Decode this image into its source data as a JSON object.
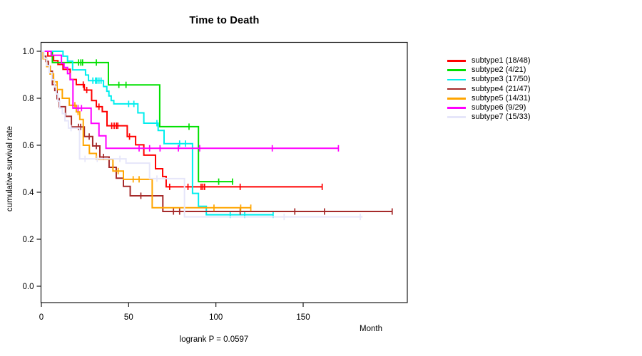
{
  "chart_data": {
    "type": "line",
    "subtype_kind": "kaplan-meier-survival-step-curves",
    "title": "Time to Death",
    "ylabel": "cumulative survival rate",
    "xlabel": "Month",
    "footnote": "logrank P = 0.0597",
    "xlim": [
      0,
      210
    ],
    "ylim": [
      0,
      1
    ],
    "grid": "off",
    "legend_position": "right-outside",
    "xticks": [
      0,
      50,
      100,
      150
    ],
    "xtick_labels": [
      "0",
      "50",
      "100",
      "150"
    ],
    "yticks": [
      0.0,
      0.2,
      0.4,
      0.6,
      0.8,
      1.0
    ],
    "ytick_labels": [
      "0.0",
      "0.2",
      "0.4",
      "0.6",
      "0.8",
      "1.0"
    ],
    "axis_color": "#1a1a1a",
    "text_color": "#000000",
    "background_color": "#ffffff",
    "series": [
      {
        "name": "subtype1",
        "legend_label": "subtype1 (18/48)",
        "color": "#FF0000",
        "steps": [
          [
            0,
            1.0
          ],
          [
            3.7,
            0.98
          ],
          [
            7,
            0.96
          ],
          [
            9.5,
            0.944
          ],
          [
            12.4,
            0.923
          ],
          [
            16.5,
            0.88
          ],
          [
            20,
            0.858
          ],
          [
            24.6,
            0.835
          ],
          [
            28.8,
            0.79
          ],
          [
            31.5,
            0.764
          ],
          [
            34.9,
            0.743
          ],
          [
            37.6,
            0.683
          ],
          [
            49.2,
            0.637
          ],
          [
            54,
            0.602
          ],
          [
            58.7,
            0.558
          ],
          [
            65.4,
            0.5
          ],
          [
            69.5,
            0.467
          ],
          [
            71.5,
            0.423
          ]
        ],
        "end": 160.9,
        "censor_months": [
          24,
          26,
          33,
          40.3,
          41.7,
          43,
          43.8,
          50.5,
          73.5,
          84,
          91.5,
          92.5,
          93.5,
          113.9,
          160.9
        ]
      },
      {
        "name": "subtype2",
        "legend_label": "subtype2 (4/21)",
        "color": "#00E000",
        "steps": [
          [
            0,
            1.0
          ],
          [
            6.3,
            0.952
          ],
          [
            38.4,
            0.857
          ],
          [
            67.8,
            0.679
          ],
          [
            90,
            0.445
          ]
        ],
        "end": 110,
        "censor_months": [
          21.3,
          22.6,
          23.6,
          31.5,
          44.4,
          48.5,
          84.6,
          101.6,
          109.5
        ]
      },
      {
        "name": "subtype3",
        "legend_label": "subtype3 (17/50)",
        "color": "#00EEEE",
        "steps": [
          [
            0,
            1.0
          ],
          [
            12.4,
            0.979
          ],
          [
            15,
            0.958
          ],
          [
            17.9,
            0.921
          ],
          [
            25.3,
            0.899
          ],
          [
            27,
            0.875
          ],
          [
            35.6,
            0.85
          ],
          [
            37.5,
            0.83
          ],
          [
            38.7,
            0.81
          ],
          [
            40,
            0.79
          ],
          [
            41.5,
            0.776
          ],
          [
            55.3,
            0.738
          ],
          [
            58.7,
            0.694
          ],
          [
            66.9,
            0.663
          ],
          [
            70.3,
            0.607
          ],
          [
            86.6,
            0.395
          ],
          [
            90,
            0.34
          ],
          [
            94.5,
            0.304
          ]
        ],
        "end": 132.8,
        "censor_months": [
          29.5,
          31,
          31.8,
          33,
          34.2,
          50,
          53,
          66.2,
          79.2,
          82.6,
          108.2,
          116.5,
          132.8
        ]
      },
      {
        "name": "subtype4",
        "legend_label": "subtype4 (21/47)",
        "color": "#A52A2A",
        "steps": [
          [
            0,
            1.0
          ],
          [
            1.3,
            0.979
          ],
          [
            2.6,
            0.957
          ],
          [
            4,
            0.936
          ],
          [
            5,
            0.915
          ],
          [
            6.3,
            0.858
          ],
          [
            7.7,
            0.833
          ],
          [
            9,
            0.798
          ],
          [
            10.2,
            0.764
          ],
          [
            13.8,
            0.723
          ],
          [
            17.2,
            0.678
          ],
          [
            24.6,
            0.637
          ],
          [
            29.4,
            0.597
          ],
          [
            33.5,
            0.55
          ],
          [
            38.8,
            0.506
          ],
          [
            42.9,
            0.46
          ],
          [
            47,
            0.425
          ],
          [
            50.9,
            0.385
          ],
          [
            69.6,
            0.318
          ]
        ],
        "end": 201,
        "censor_months": [
          21.3,
          22.5,
          27.4,
          31.5,
          35.6,
          41,
          57,
          75.7,
          79.2,
          113.9,
          145.2,
          162.2,
          201
        ]
      },
      {
        "name": "subtype5",
        "legend_label": "subtype5 (14/31)",
        "color": "#FFA500",
        "steps": [
          [
            0,
            1.0
          ],
          [
            1,
            0.968
          ],
          [
            3,
            0.935
          ],
          [
            5,
            0.903
          ],
          [
            7,
            0.87
          ],
          [
            9,
            0.837
          ],
          [
            12,
            0.8
          ],
          [
            16,
            0.77
          ],
          [
            20,
            0.742
          ],
          [
            22,
            0.71
          ],
          [
            24,
            0.6
          ],
          [
            27.5,
            0.565
          ],
          [
            31.5,
            0.54
          ],
          [
            41,
            0.49
          ],
          [
            47,
            0.455
          ],
          [
            63.5,
            0.334
          ]
        ],
        "end": 120,
        "censor_months": [
          19.2,
          21,
          44,
          52.6,
          56,
          98.9,
          114.2,
          120
        ]
      },
      {
        "name": "subtype6",
        "legend_label": "subtype6 (9/29)",
        "color": "#FF00FF",
        "steps": [
          [
            0,
            1.0
          ],
          [
            5.6,
            0.983
          ],
          [
            11.5,
            0.948
          ],
          [
            13,
            0.931
          ],
          [
            15,
            0.905
          ],
          [
            16.5,
            0.879
          ],
          [
            18.1,
            0.758
          ],
          [
            28.5,
            0.693
          ],
          [
            33,
            0.64
          ],
          [
            37,
            0.587
          ]
        ],
        "end": 170.2,
        "censor_months": [
          21,
          23,
          56,
          62,
          68,
          78.5,
          90.7,
          132.3,
          170.2
        ]
      },
      {
        "name": "subtype7",
        "legend_label": "subtype7 (15/33)",
        "color": "#E6E6FA",
        "steps": [
          [
            0,
            1.0
          ],
          [
            1.5,
            0.97
          ],
          [
            3,
            0.939
          ],
          [
            4.5,
            0.909
          ],
          [
            6,
            0.879
          ],
          [
            7.5,
            0.848
          ],
          [
            8.5,
            0.818
          ],
          [
            9.5,
            0.788
          ],
          [
            10.5,
            0.758
          ],
          [
            12,
            0.735
          ],
          [
            13.5,
            0.704
          ],
          [
            15.5,
            0.673
          ],
          [
            21.9,
            0.542
          ],
          [
            48.5,
            0.524
          ],
          [
            62,
            0.458
          ],
          [
            82,
            0.295
          ]
        ],
        "end": 184,
        "censor_months": [
          17,
          25,
          32,
          45,
          66.2,
          139.1,
          182.7
        ]
      }
    ]
  }
}
